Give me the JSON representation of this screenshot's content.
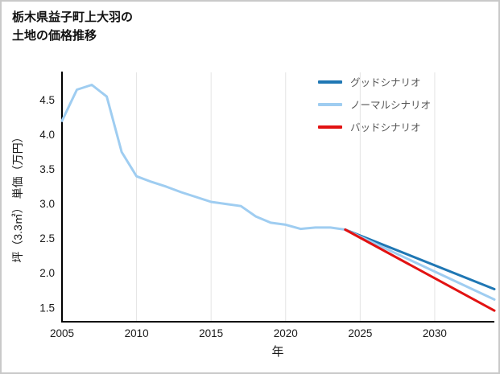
{
  "page": {
    "title_line1": "栃木県益子町上大羽の",
    "title_line2": "土地の価格推移"
  },
  "chart_data": {
    "type": "line",
    "title": "栃木県益子町上大羽の土地の価格推移",
    "xlabel": "年",
    "ylabel": "坪（3.3㎡） 単価（万円）",
    "xlim": [
      2005,
      2034
    ],
    "ylim": [
      1.3,
      4.9
    ],
    "xticks": [
      2005,
      2010,
      2015,
      2020,
      2025,
      2030
    ],
    "yticks": [
      1.5,
      2.0,
      2.5,
      3.0,
      3.5,
      4.0,
      4.5
    ],
    "grid": "vertical-only",
    "legend_position": "top-right",
    "axis_color": "#000000",
    "grid_color": "#e4e4e4",
    "series": [
      {
        "name": "history",
        "color": "#9fcdf1",
        "x": [
          2005,
          2006,
          2007,
          2008,
          2009,
          2010,
          2011,
          2012,
          2013,
          2014,
          2015,
          2016,
          2017,
          2018,
          2019,
          2020,
          2021,
          2022,
          2023,
          2024
        ],
        "y": [
          4.2,
          4.65,
          4.72,
          4.55,
          3.75,
          3.4,
          3.32,
          3.25,
          3.17,
          3.1,
          3.03,
          3.0,
          2.97,
          2.82,
          2.73,
          2.7,
          2.64,
          2.66,
          2.66,
          2.63
        ]
      },
      {
        "name": "グッドシナリオ",
        "color": "#1f77b4",
        "x": [
          2024,
          2034
        ],
        "y": [
          2.63,
          1.77
        ]
      },
      {
        "name": "ノーマルシナリオ",
        "color": "#9fcdf1",
        "x": [
          2024,
          2034
        ],
        "y": [
          2.63,
          1.62
        ]
      },
      {
        "name": "バッドシナリオ",
        "color": "#e21212",
        "x": [
          2024,
          2034
        ],
        "y": [
          2.63,
          1.46
        ]
      }
    ],
    "legend": [
      {
        "label": "グッドシナリオ",
        "color": "#1f77b4"
      },
      {
        "label": "ノーマルシナリオ",
        "color": "#9fcdf1"
      },
      {
        "label": "バッドシナリオ",
        "color": "#e21212"
      }
    ]
  }
}
